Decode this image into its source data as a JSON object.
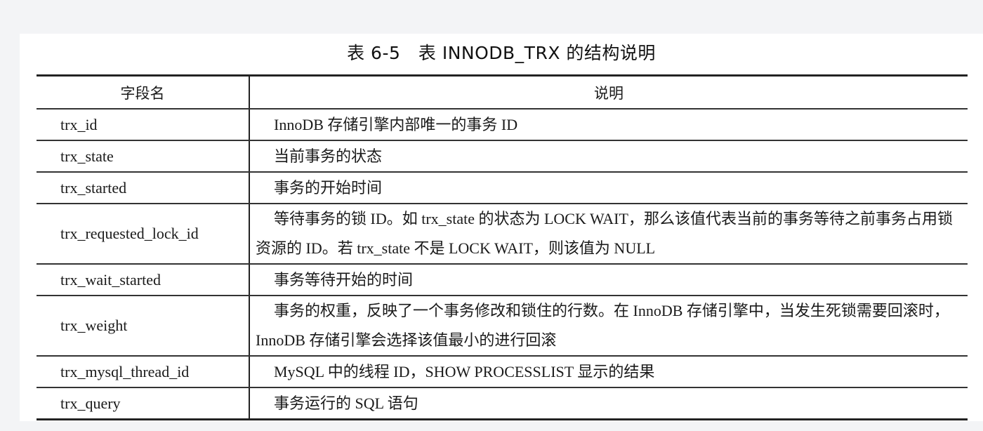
{
  "title": "表 6-5　表 INNODB_TRX 的结构说明",
  "headers": [
    "字段名",
    "说明"
  ],
  "rows": [
    {
      "field": "trx_id",
      "desc": "InnoDB 存储引擎内部唯一的事务 ID"
    },
    {
      "field": "trx_state",
      "desc": "当前事务的状态"
    },
    {
      "field": "trx_started",
      "desc": "事务的开始时间"
    },
    {
      "field": "trx_requested_lock_id",
      "desc": "等待事务的锁 ID。如 trx_state 的状态为 LOCK WAIT，那么该值代表当前的事务等待之前事务占用锁资源的 ID。若 trx_state 不是 LOCK WAIT，则该值为 NULL"
    },
    {
      "field": "trx_wait_started",
      "desc": "事务等待开始的时间"
    },
    {
      "field": "trx_weight",
      "desc": "事务的权重，反映了一个事务修改和锁住的行数。在 InnoDB 存储引擎中，当发生死锁需要回滚时，InnoDB 存储引擎会选择该值最小的进行回滚"
    },
    {
      "field": "trx_mysql_thread_id",
      "desc": "MySQL 中的线程 ID，SHOW PROCESSLIST 显示的结果"
    },
    {
      "field": "trx_query",
      "desc": "事务运行的 SQL 语句"
    }
  ]
}
